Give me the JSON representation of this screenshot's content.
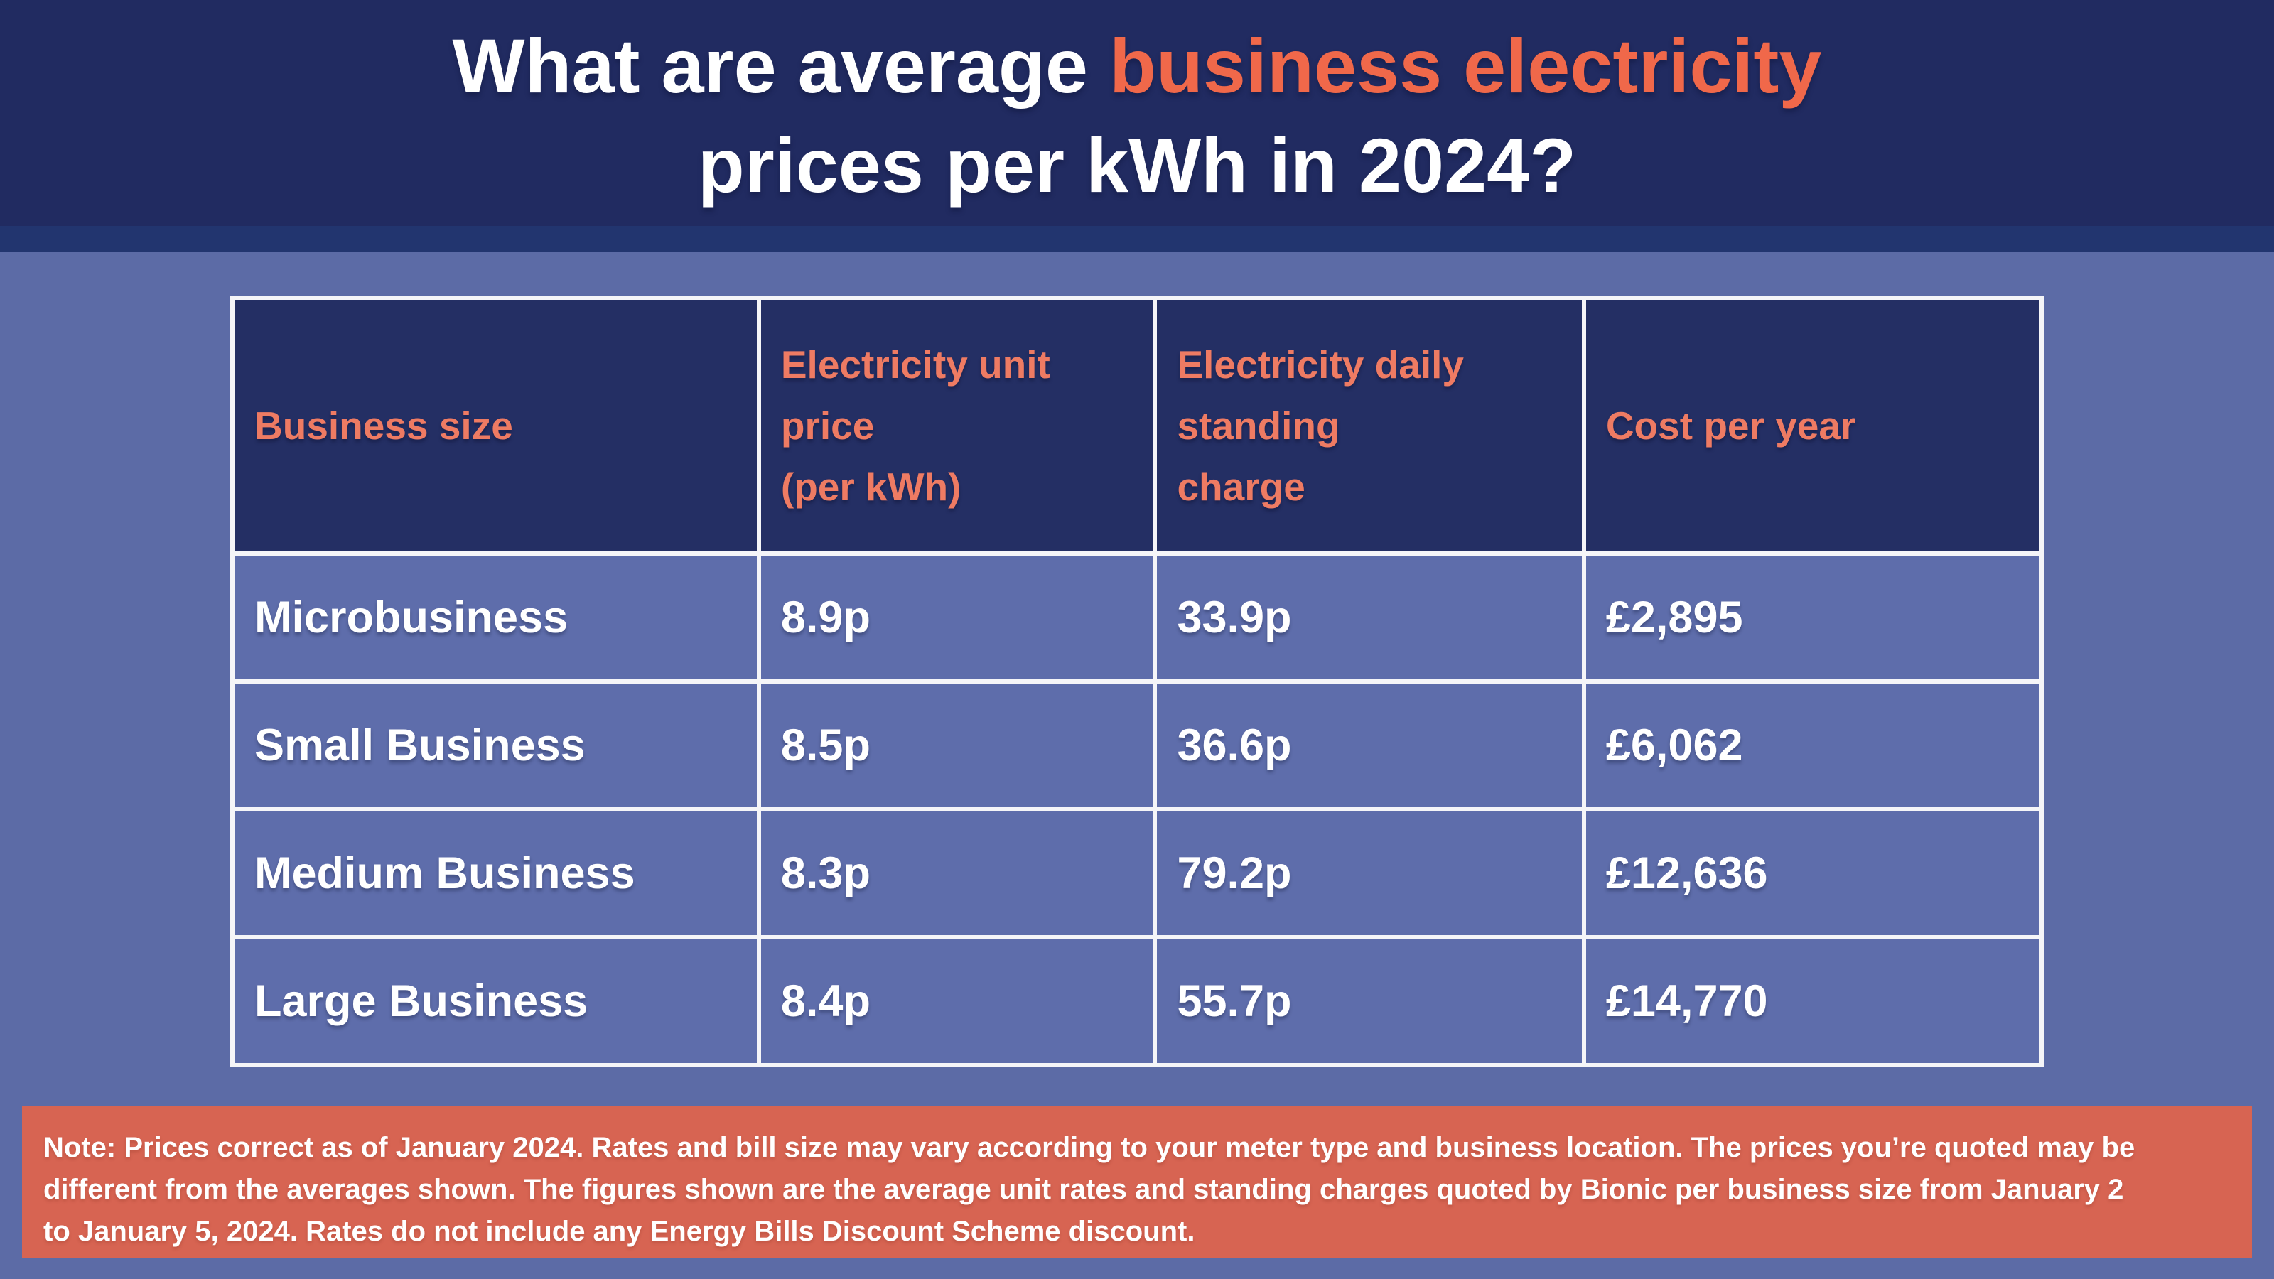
{
  "title": {
    "prefix": "What are average ",
    "highlight": "business electricity",
    "line2": "prices per kWh in 2024?"
  },
  "table": {
    "headers": {
      "business_size": "Business size",
      "unit_price": "Electricity unit\nprice\n(per kWh)",
      "standing_charge": "Electricity daily\nstanding\ncharge",
      "cost_per_year": "Cost per year"
    },
    "rows": [
      {
        "business_size": "Microbusiness",
        "unit_price": "8.9p",
        "standing_charge": "33.9p",
        "cost_per_year": "£2,895"
      },
      {
        "business_size": "Small Business",
        "unit_price": "8.5p",
        "standing_charge": "36.6p",
        "cost_per_year": "£6,062"
      },
      {
        "business_size": "Medium Business",
        "unit_price": "8.3p",
        "standing_charge": "79.2p",
        "cost_per_year": "£12,636"
      },
      {
        "business_size": "Large Business",
        "unit_price": "8.4p",
        "standing_charge": "55.7p",
        "cost_per_year": "£14,770"
      }
    ]
  },
  "note": {
    "text": "Note: Prices correct as of January 2024. Rates and bill size may vary according to your meter type and business location. The prices you’re quoted may be\ndifferent from the averages shown. The figures shown are the average unit rates and standing charges quoted by Bionic per business size from January 2\nto January 5, 2024. Rates do not include any Energy Bills Discount Scheme discount."
  },
  "colors": {
    "header_band": "#212b61",
    "header_divider": "#22356f",
    "page_background": "#5c6ba6",
    "table_header_bg": "#242f64",
    "table_cell_bg": "#5e6dab",
    "table_border": "#f5f5f8",
    "title_highlight": "#f0684a",
    "table_header_text": "#ee7b63",
    "note_bg": "#d76452",
    "text_white": "#ffffff"
  },
  "chart_data": {
    "type": "table",
    "title": "What are average business electricity prices per kWh in 2024?",
    "columns": [
      "Business size",
      "Electricity unit price (per kWh)",
      "Electricity daily standing charge",
      "Cost per year"
    ],
    "rows": [
      [
        "Microbusiness",
        "8.9p",
        "33.9p",
        "£2,895"
      ],
      [
        "Small Business",
        "8.5p",
        "36.6p",
        "£6,062"
      ],
      [
        "Medium Business",
        "8.3p",
        "79.2p",
        "£12,636"
      ],
      [
        "Large Business",
        "8.4p",
        "55.7p",
        "£14,770"
      ]
    ],
    "footnote": "Note: Prices correct as of January 2024. Rates and bill size may vary according to your meter type and business location. The prices you’re quoted may be different from the averages shown. The figures shown are the average unit rates and standing charges quoted by Bionic per business size from January 2 to January 5, 2024. Rates do not include any Energy Bills Discount Scheme discount.",
    "units": {
      "unit_price": "pence per kWh",
      "standing_charge": "pence per day",
      "cost_per_year": "GBP per year"
    },
    "legend_position": "none",
    "grid": "white cell borders"
  }
}
